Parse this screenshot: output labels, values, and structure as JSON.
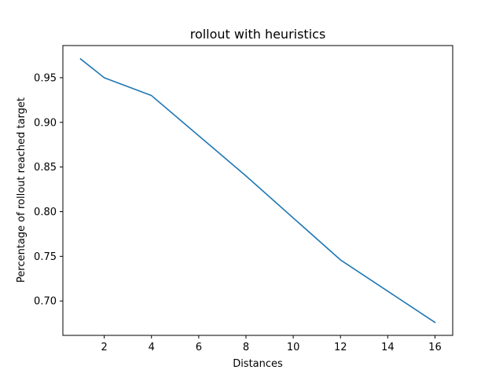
{
  "chart_data": {
    "type": "line",
    "title": "rollout with heuristics",
    "xlabel": "Distances",
    "ylabel": "Percentage of rollout reached target",
    "xlim": [
      0.25,
      16.75
    ],
    "ylim": [
      0.6615,
      0.986
    ],
    "xticks": [
      2,
      4,
      6,
      8,
      10,
      12,
      14,
      16
    ],
    "yticks": [
      0.7,
      0.75,
      0.8,
      0.85,
      0.9,
      0.95
    ],
    "grid": false,
    "series": [
      {
        "color": "#1f77b4",
        "x": [
          1,
          2,
          4,
          8,
          12,
          16
        ],
        "y": [
          0.971,
          0.95,
          0.93,
          0.84,
          0.746,
          0.676
        ]
      }
    ]
  }
}
